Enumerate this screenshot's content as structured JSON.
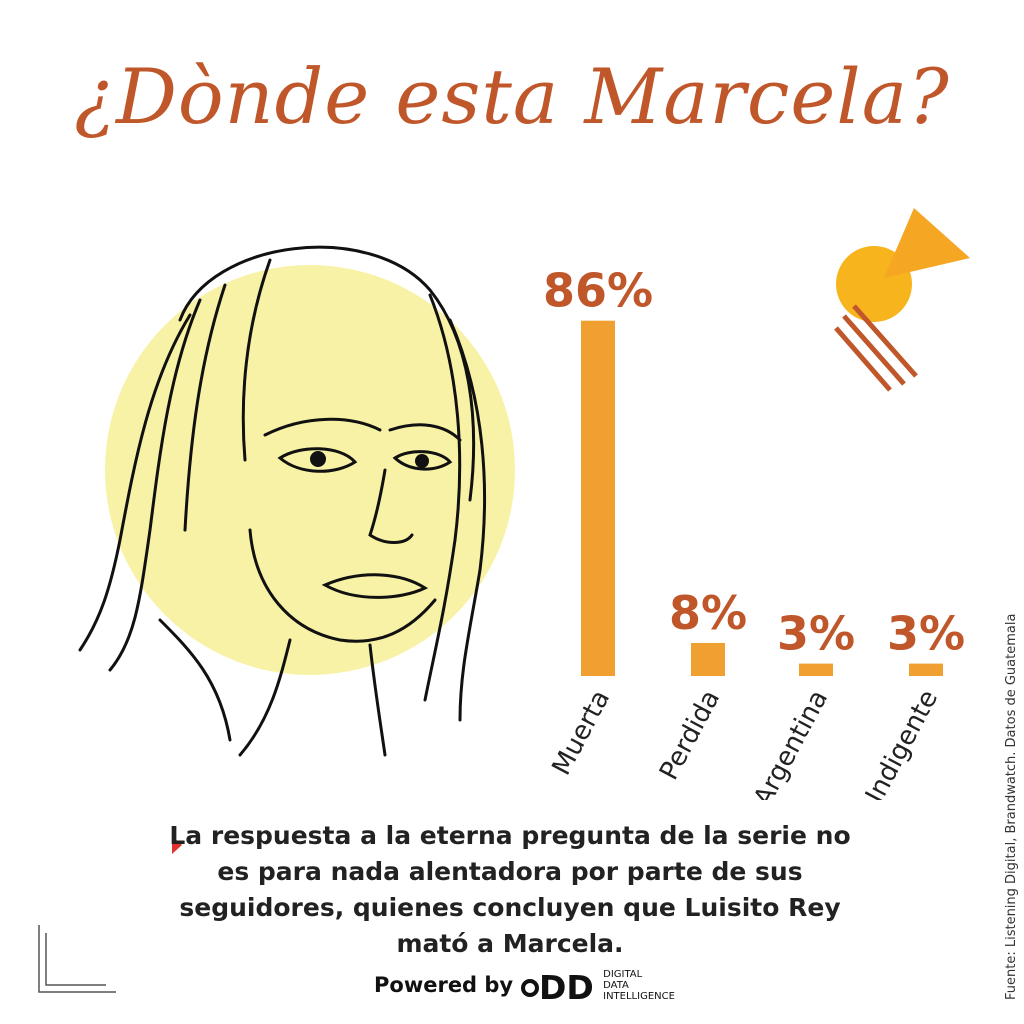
{
  "header": {
    "title": "¿Dònde esta Marcela?"
  },
  "colors": {
    "title": "#c0572a",
    "bar": "#f0a030",
    "value_label": "#c0572a",
    "portrait_circle": "#f8f2a6",
    "deco_circle": "#f7b41c",
    "deco_triangle": "#f5a623",
    "deco_lines": "#c0572a",
    "bullet": "#e03030"
  },
  "chart_data": {
    "type": "bar",
    "categories": [
      "Muerta",
      "Perdida",
      "Argentina",
      "Indigente"
    ],
    "values": [
      86,
      8,
      3,
      3
    ],
    "value_labels": [
      "86%",
      "8%",
      "3%",
      "3%"
    ],
    "title": "",
    "xlabel": "",
    "ylabel": "",
    "ylim": [
      0,
      100
    ],
    "grid": false,
    "legend": "none"
  },
  "description": {
    "text": "La respuesta a la eterna pregunta de la serie no es para nada alentadora por parte de sus seguidores, quienes concluyen que Luisito Rey mató a Marcela."
  },
  "footer": {
    "powered_by": "Powered by",
    "logo_text": "DDI",
    "logo_subtitle": "DIGITAL\nDATA\nINTELLIGENCE"
  },
  "source": "Fuente: Listening Digital, Brandwatch. Datos de Guatemala"
}
